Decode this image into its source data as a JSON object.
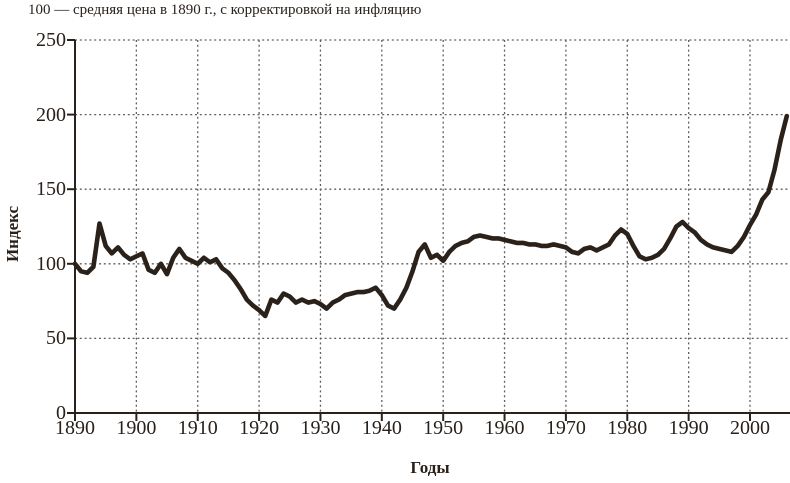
{
  "figure": {
    "note_title": "100 — средняя цена в 1890 г., с корректировкой на инфляцию"
  },
  "colors": {
    "ink": "#2a211a",
    "grid": "#5f5f5f",
    "background": "#ffffff"
  },
  "chart_data": {
    "type": "line",
    "title": "100 — средняя цена в 1890 г., с корректировкой на инфляцию",
    "xlabel": "Годы",
    "ylabel": "Индекс",
    "x_ticks": [
      1890,
      1900,
      1910,
      1920,
      1930,
      1940,
      1950,
      1960,
      1970,
      1980,
      1990,
      2000
    ],
    "y_ticks": [
      0,
      50,
      100,
      150,
      200,
      250
    ],
    "xlim": [
      1890,
      2006.5
    ],
    "ylim": [
      0,
      250
    ],
    "grid": true,
    "legend": "none",
    "series": [
      {
        "name": "индекс",
        "x_start": 1890,
        "x_step": 1,
        "values": [
          100,
          95,
          94,
          98,
          127,
          112,
          107,
          111,
          106,
          103,
          105,
          107,
          96,
          94,
          100,
          93,
          104,
          110,
          104,
          102,
          100,
          104,
          101,
          103,
          97,
          94,
          89,
          83,
          76,
          72,
          69,
          65,
          76,
          74,
          80,
          78,
          74,
          76,
          74,
          75,
          73,
          70,
          74,
          76,
          79,
          80,
          81,
          81,
          82,
          84,
          79,
          72,
          70,
          76,
          84,
          95,
          108,
          113,
          104,
          106,
          102,
          108,
          112,
          114,
          115,
          118,
          119,
          118,
          117,
          117,
          116,
          115,
          114,
          114,
          113,
          113,
          112,
          112,
          113,
          112,
          111,
          108,
          107,
          110,
          111,
          109,
          111,
          113,
          119,
          123,
          120,
          112,
          105,
          103,
          104,
          106,
          110,
          117,
          125,
          128,
          124,
          121,
          116,
          113,
          111,
          110,
          109,
          108,
          112,
          118,
          126,
          133,
          143,
          148,
          163,
          183,
          199
        ]
      }
    ]
  }
}
